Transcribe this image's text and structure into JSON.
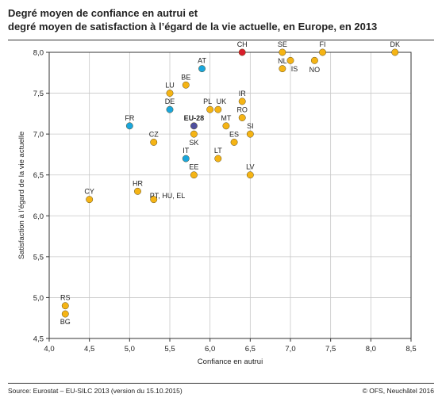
{
  "title_line1": "Degré moyen de confiance en autrui et",
  "title_line2": "degré moyen de satisfaction à l’égard de la vie actuelle, en Europe, en 2013",
  "footer": {
    "source": "Source: Eurostat – EU-SILC 2013 (version du 15.10.2015)",
    "copyright": "© OFS, Neuchâtel 2016"
  },
  "colors": {
    "default": "#F5B415",
    "blue": "#1AA6DD",
    "red": "#D81E2B",
    "eu": "#4E4F9E",
    "grid": "#C8C8C8"
  },
  "chart_data": {
    "type": "scatter",
    "title": "Degré moyen de confiance en autrui et degré moyen de satisfaction à l’égard de la vie actuelle, en Europe, en 2013",
    "xlabel": "Confiance en autrui",
    "ylabel": "Satisfaction à l’égard de la vie actuelle",
    "xlim": [
      4.0,
      8.5
    ],
    "ylim": [
      4.5,
      8.0
    ],
    "xticks": [
      "4,0",
      "4,5",
      "5,0",
      "5,5",
      "6,0",
      "6,5",
      "7,0",
      "7,5",
      "8,0",
      "8,5"
    ],
    "yticks": [
      "4,5",
      "5,0",
      "5,5",
      "6,0",
      "6,5",
      "7,0",
      "7,5",
      "8,0"
    ],
    "grid": true,
    "points": [
      {
        "x": 6.4,
        "y": 8.0,
        "color": "red"
      },
      {
        "x": 6.9,
        "y": 8.0,
        "color": "default"
      },
      {
        "x": 7.4,
        "y": 8.0,
        "color": "default"
      },
      {
        "x": 8.3,
        "y": 8.0,
        "color": "default"
      },
      {
        "x": 7.0,
        "y": 7.9,
        "color": "default"
      },
      {
        "x": 7.3,
        "y": 7.9,
        "color": "default"
      },
      {
        "x": 6.9,
        "y": 7.8,
        "color": "default"
      },
      {
        "x": 5.9,
        "y": 7.8,
        "color": "blue"
      },
      {
        "x": 5.7,
        "y": 7.6,
        "color": "default"
      },
      {
        "x": 5.5,
        "y": 7.5,
        "color": "default"
      },
      {
        "x": 6.4,
        "y": 7.4,
        "color": "default"
      },
      {
        "x": 6.0,
        "y": 7.3,
        "color": "default"
      },
      {
        "x": 6.1,
        "y": 7.3,
        "color": "default"
      },
      {
        "x": 5.5,
        "y": 7.3,
        "color": "blue"
      },
      {
        "x": 6.4,
        "y": 7.2,
        "color": "default"
      },
      {
        "x": 5.0,
        "y": 7.1,
        "color": "blue"
      },
      {
        "x": 5.8,
        "y": 7.1,
        "color": "eu"
      },
      {
        "x": 6.2,
        "y": 7.1,
        "color": "default"
      },
      {
        "x": 6.5,
        "y": 7.0,
        "color": "default"
      },
      {
        "x": 5.8,
        "y": 7.0,
        "color": "default"
      },
      {
        "x": 5.3,
        "y": 6.9,
        "color": "default"
      },
      {
        "x": 6.3,
        "y": 6.9,
        "color": "default"
      },
      {
        "x": 5.7,
        "y": 6.7,
        "color": "blue"
      },
      {
        "x": 6.1,
        "y": 6.7,
        "color": "default"
      },
      {
        "x": 5.8,
        "y": 6.5,
        "color": "default"
      },
      {
        "x": 6.5,
        "y": 6.5,
        "color": "default"
      },
      {
        "x": 5.1,
        "y": 6.3,
        "color": "default"
      },
      {
        "x": 5.3,
        "y": 6.2,
        "color": "default"
      },
      {
        "x": 4.5,
        "y": 6.2,
        "color": "default"
      },
      {
        "x": 4.2,
        "y": 4.9,
        "color": "default"
      },
      {
        "x": 4.2,
        "y": 4.8,
        "color": "default"
      }
    ],
    "labels": [
      {
        "text": "CH",
        "x": 6.4,
        "y": 8.0,
        "pos": "above"
      },
      {
        "text": "SE",
        "x": 6.9,
        "y": 8.0,
        "pos": "above"
      },
      {
        "text": "FI",
        "x": 7.4,
        "y": 8.0,
        "pos": "above"
      },
      {
        "text": "DK",
        "x": 8.3,
        "y": 8.0,
        "pos": "above"
      },
      {
        "text": "NL",
        "x": 6.9,
        "y": 7.9,
        "pos": "at"
      },
      {
        "text": "IS",
        "x": 7.05,
        "y": 7.8,
        "pos": "at"
      },
      {
        "text": "NO",
        "x": 7.3,
        "y": 7.79,
        "pos": "at"
      },
      {
        "text": "AT",
        "x": 5.9,
        "y": 7.8,
        "pos": "above"
      },
      {
        "text": "BE",
        "x": 5.7,
        "y": 7.6,
        "pos": "above"
      },
      {
        "text": "LU",
        "x": 5.5,
        "y": 7.5,
        "pos": "above"
      },
      {
        "text": "IR",
        "x": 6.4,
        "y": 7.4,
        "pos": "above"
      },
      {
        "text": "PL",
        "x": 5.97,
        "y": 7.3,
        "pos": "above"
      },
      {
        "text": "UK",
        "x": 6.14,
        "y": 7.3,
        "pos": "above"
      },
      {
        "text": "DE",
        "x": 5.5,
        "y": 7.3,
        "pos": "above"
      },
      {
        "text": "RO",
        "x": 6.4,
        "y": 7.2,
        "pos": "above"
      },
      {
        "text": "FR",
        "x": 5.0,
        "y": 7.1,
        "pos": "above"
      },
      {
        "text": "EU-28",
        "x": 5.8,
        "y": 7.1,
        "pos": "above",
        "bold": true
      },
      {
        "text": "MT",
        "x": 6.2,
        "y": 7.1,
        "pos": "above"
      },
      {
        "text": "SI",
        "x": 6.5,
        "y": 7.0,
        "pos": "above"
      },
      {
        "text": "CZ",
        "x": 5.3,
        "y": 6.9,
        "pos": "above"
      },
      {
        "text": "ES",
        "x": 6.3,
        "y": 6.9,
        "pos": "above"
      },
      {
        "text": "SK",
        "x": 5.8,
        "y": 6.9,
        "pos": "at"
      },
      {
        "text": "IT",
        "x": 5.7,
        "y": 6.7,
        "pos": "above"
      },
      {
        "text": "LT",
        "x": 6.1,
        "y": 6.7,
        "pos": "above"
      },
      {
        "text": "EE",
        "x": 5.8,
        "y": 6.5,
        "pos": "above"
      },
      {
        "text": "LV",
        "x": 6.5,
        "y": 6.5,
        "pos": "above"
      },
      {
        "text": "HR",
        "x": 5.1,
        "y": 6.3,
        "pos": "above"
      },
      {
        "text": "PT, HU, EL",
        "x": 5.47,
        "y": 6.25,
        "pos": "at"
      },
      {
        "text": "CY",
        "x": 4.5,
        "y": 6.2,
        "pos": "above"
      },
      {
        "text": "RS",
        "x": 4.2,
        "y": 4.9,
        "pos": "above"
      },
      {
        "text": "BG",
        "x": 4.2,
        "y": 4.8,
        "pos": "below"
      }
    ]
  }
}
